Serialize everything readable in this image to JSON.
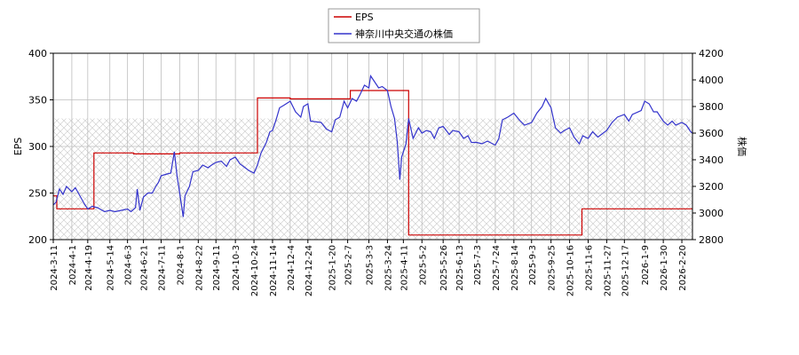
{
  "chart_data": {
    "type": "line",
    "title": "",
    "legend": {
      "placement": "top-center",
      "entries": [
        {
          "name": "EPS",
          "color": "#cc0000"
        },
        {
          "name": "神奈川中央交通の株価",
          "color": "#3333cc"
        }
      ]
    },
    "y_left": {
      "label": "EPS",
      "range": [
        200,
        400
      ],
      "ticks": [
        "200",
        "250",
        "300",
        "350",
        "400"
      ]
    },
    "y_right": {
      "label": "株価",
      "range": [
        2800,
        4200
      ],
      "ticks": [
        "2800",
        "3000",
        "3200",
        "3400",
        "3600",
        "3800",
        "4000",
        "4200"
      ]
    },
    "x_axis": {
      "range": [
        "2024-03-11",
        "2026-03-04"
      ],
      "ticks": [
        "2024-3-11",
        "2024-4-1",
        "2024-4-19",
        "2024-5-14",
        "2024-6-3",
        "2024-6-21",
        "2024-7-11",
        "2024-8-1",
        "2024-8-22",
        "2024-9-11",
        "2024-10-3",
        "2024-10-24",
        "2024-11-14",
        "2024-12-4",
        "2024-12-24",
        "2025-1-20",
        "2025-2-7",
        "2025-3-3",
        "2025-3-24",
        "2025-4-11",
        "2025-5-2",
        "2025-5-26",
        "2025-6-13",
        "2025-7-3",
        "2025-7-24",
        "2025-8-14",
        "2025-9-3",
        "2025-9-25",
        "2025-10-16",
        "2025-11-6",
        "2025-11-27",
        "2025-12-17",
        "2026-1-9",
        "2026-1-30",
        "2026-2-20"
      ]
    },
    "grid": true,
    "series": [
      {
        "name": "EPS",
        "axis": "left",
        "color": "#cc0000",
        "step": true,
        "points": [
          [
            "2024-03-11",
            247
          ],
          [
            "2024-03-15",
            233
          ],
          [
            "2024-04-26",
            293
          ],
          [
            "2024-06-10",
            292
          ],
          [
            "2024-08-01",
            293
          ],
          [
            "2024-10-28",
            352
          ],
          [
            "2024-12-04",
            351
          ],
          [
            "2025-02-10",
            360
          ],
          [
            "2025-04-17",
            205
          ],
          [
            "2025-06-13",
            205
          ],
          [
            "2025-10-30",
            233
          ],
          [
            "2026-03-04",
            234
          ]
        ]
      },
      {
        "name": "神奈川中央交通の株価",
        "axis": "right",
        "color": "#3333cc",
        "step": false,
        "points": [
          [
            "2024-03-11",
            3060
          ],
          [
            "2024-03-14",
            3080
          ],
          [
            "2024-03-18",
            3180
          ],
          [
            "2024-03-22",
            3140
          ],
          [
            "2024-03-26",
            3200
          ],
          [
            "2024-04-01",
            3160
          ],
          [
            "2024-04-05",
            3190
          ],
          [
            "2024-04-10",
            3130
          ],
          [
            "2024-04-15",
            3070
          ],
          [
            "2024-04-19",
            3030
          ],
          [
            "2024-04-24",
            3050
          ],
          [
            "2024-04-30",
            3040
          ],
          [
            "2024-05-08",
            3010
          ],
          [
            "2024-05-14",
            3020
          ],
          [
            "2024-05-20",
            3010
          ],
          [
            "2024-05-27",
            3020
          ],
          [
            "2024-06-03",
            3030
          ],
          [
            "2024-06-07",
            3010
          ],
          [
            "2024-06-12",
            3040
          ],
          [
            "2024-06-14",
            3180
          ],
          [
            "2024-06-17",
            3020
          ],
          [
            "2024-06-21",
            3120
          ],
          [
            "2024-06-26",
            3150
          ],
          [
            "2024-07-01",
            3150
          ],
          [
            "2024-07-05",
            3200
          ],
          [
            "2024-07-08",
            3230
          ],
          [
            "2024-07-11",
            3280
          ],
          [
            "2024-07-16",
            3290
          ],
          [
            "2024-07-22",
            3300
          ],
          [
            "2024-07-26",
            3460
          ],
          [
            "2024-07-29",
            3280
          ],
          [
            "2024-08-01",
            3150
          ],
          [
            "2024-08-05",
            2970
          ],
          [
            "2024-08-07",
            3130
          ],
          [
            "2024-08-12",
            3200
          ],
          [
            "2024-08-16",
            3310
          ],
          [
            "2024-08-22",
            3320
          ],
          [
            "2024-08-27",
            3360
          ],
          [
            "2024-09-02",
            3340
          ],
          [
            "2024-09-06",
            3360
          ],
          [
            "2024-09-11",
            3380
          ],
          [
            "2024-09-17",
            3390
          ],
          [
            "2024-09-23",
            3350
          ],
          [
            "2024-09-27",
            3400
          ],
          [
            "2024-10-03",
            3420
          ],
          [
            "2024-10-08",
            3370
          ],
          [
            "2024-10-14",
            3340
          ],
          [
            "2024-10-18",
            3320
          ],
          [
            "2024-10-24",
            3300
          ],
          [
            "2024-10-28",
            3360
          ],
          [
            "2024-11-01",
            3450
          ],
          [
            "2024-11-07",
            3530
          ],
          [
            "2024-11-11",
            3610
          ],
          [
            "2024-11-14",
            3620
          ],
          [
            "2024-11-18",
            3700
          ],
          [
            "2024-11-22",
            3790
          ],
          [
            "2024-11-27",
            3810
          ],
          [
            "2024-12-04",
            3840
          ],
          [
            "2024-12-10",
            3760
          ],
          [
            "2024-12-16",
            3720
          ],
          [
            "2024-12-19",
            3800
          ],
          [
            "2024-12-24",
            3820
          ],
          [
            "2024-12-27",
            3690
          ],
          [
            "2025-01-08",
            3680
          ],
          [
            "2025-01-14",
            3630
          ],
          [
            "2025-01-20",
            3610
          ],
          [
            "2025-01-24",
            3700
          ],
          [
            "2025-01-29",
            3720
          ],
          [
            "2025-02-03",
            3840
          ],
          [
            "2025-02-07",
            3790
          ],
          [
            "2025-02-12",
            3860
          ],
          [
            "2025-02-17",
            3840
          ],
          [
            "2025-02-21",
            3890
          ],
          [
            "2025-02-26",
            3960
          ],
          [
            "2025-03-03",
            3940
          ],
          [
            "2025-03-05",
            4030
          ],
          [
            "2025-03-10",
            3980
          ],
          [
            "2025-03-14",
            3940
          ],
          [
            "2025-03-18",
            3950
          ],
          [
            "2025-03-24",
            3920
          ],
          [
            "2025-03-28",
            3800
          ],
          [
            "2025-04-01",
            3710
          ],
          [
            "2025-04-04",
            3540
          ],
          [
            "2025-04-07",
            3250
          ],
          [
            "2025-04-09",
            3420
          ],
          [
            "2025-04-11",
            3460
          ],
          [
            "2025-04-14",
            3520
          ],
          [
            "2025-04-17",
            3710
          ],
          [
            "2025-04-22",
            3560
          ],
          [
            "2025-04-28",
            3640
          ],
          [
            "2025-05-02",
            3600
          ],
          [
            "2025-05-07",
            3620
          ],
          [
            "2025-05-12",
            3610
          ],
          [
            "2025-05-16",
            3560
          ],
          [
            "2025-05-21",
            3640
          ],
          [
            "2025-05-26",
            3650
          ],
          [
            "2025-06-02",
            3590
          ],
          [
            "2025-06-06",
            3620
          ],
          [
            "2025-06-13",
            3610
          ],
          [
            "2025-06-18",
            3560
          ],
          [
            "2025-06-23",
            3580
          ],
          [
            "2025-06-27",
            3530
          ],
          [
            "2025-07-03",
            3530
          ],
          [
            "2025-07-09",
            3520
          ],
          [
            "2025-07-15",
            3540
          ],
          [
            "2025-07-24",
            3510
          ],
          [
            "2025-07-28",
            3560
          ],
          [
            "2025-08-01",
            3700
          ],
          [
            "2025-08-07",
            3720
          ],
          [
            "2025-08-14",
            3750
          ],
          [
            "2025-08-20",
            3700
          ],
          [
            "2025-08-26",
            3660
          ],
          [
            "2025-09-03",
            3680
          ],
          [
            "2025-09-09",
            3750
          ],
          [
            "2025-09-15",
            3800
          ],
          [
            "2025-09-19",
            3860
          ],
          [
            "2025-09-25",
            3790
          ],
          [
            "2025-09-30",
            3640
          ],
          [
            "2025-10-06",
            3600
          ],
          [
            "2025-10-10",
            3620
          ],
          [
            "2025-10-16",
            3640
          ],
          [
            "2025-10-21",
            3570
          ],
          [
            "2025-10-27",
            3520
          ],
          [
            "2025-10-31",
            3580
          ],
          [
            "2025-11-06",
            3560
          ],
          [
            "2025-11-11",
            3610
          ],
          [
            "2025-11-17",
            3570
          ],
          [
            "2025-11-21",
            3590
          ],
          [
            "2025-11-27",
            3620
          ],
          [
            "2025-12-03",
            3680
          ],
          [
            "2025-12-09",
            3720
          ],
          [
            "2025-12-17",
            3740
          ],
          [
            "2025-12-22",
            3690
          ],
          [
            "2025-12-26",
            3740
          ],
          [
            "2026-01-05",
            3770
          ],
          [
            "2026-01-09",
            3840
          ],
          [
            "2026-01-14",
            3820
          ],
          [
            "2026-01-19",
            3760
          ],
          [
            "2026-01-23",
            3760
          ],
          [
            "2026-01-30",
            3690
          ],
          [
            "2026-02-04",
            3660
          ],
          [
            "2026-02-09",
            3690
          ],
          [
            "2026-02-13",
            3660
          ],
          [
            "2026-02-20",
            3680
          ],
          [
            "2026-02-25",
            3660
          ],
          [
            "2026-03-02",
            3610
          ],
          [
            "2026-03-04",
            3600
          ]
        ]
      }
    ]
  }
}
